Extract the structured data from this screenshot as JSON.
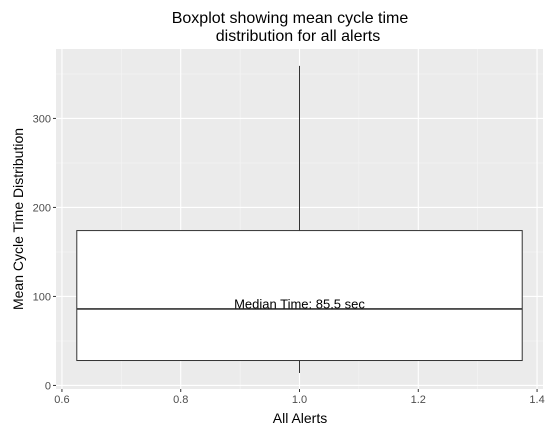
{
  "chart_data": {
    "type": "boxplot",
    "title": [
      "Boxplot showing mean cycle time",
      "distribution for all alerts"
    ],
    "xlabel": "All Alerts",
    "ylabel": "Mean Cycle Time Distribution",
    "xlim": [
      0.59,
      1.41
    ],
    "ylim": [
      -4,
      378
    ],
    "x_ticks": [
      0.6,
      0.8,
      1.0,
      1.2,
      1.4
    ],
    "x_tick_labels": [
      "0.6",
      "0.8",
      "1.0",
      "1.2",
      "1.4"
    ],
    "y_ticks": [
      0,
      100,
      200,
      300
    ],
    "y_tick_labels": [
      "0",
      "100",
      "200",
      "300"
    ],
    "box": {
      "x_center": 1.0,
      "x_left": 0.625,
      "x_right": 1.375,
      "min": 14,
      "q1": 28,
      "median": 86,
      "q3": 174,
      "max": 359
    },
    "annotation": {
      "text": "Median Time: 85.5 sec",
      "x": 1.0,
      "y": 92
    },
    "grid": true,
    "colors": {
      "panel": "#ebebeb",
      "grid_major": "#ffffff",
      "grid_minor": "#f5f5f5",
      "box_fill": "#ffffff",
      "box_line": "#333333",
      "tick_text": "#4d4d4d",
      "tick_mark": "#333333"
    }
  }
}
